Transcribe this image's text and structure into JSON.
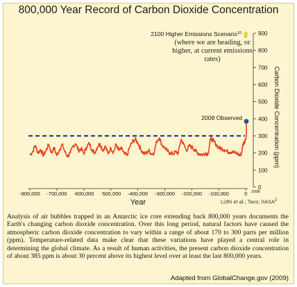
{
  "title": "800,000 Year Record of Carbon Dioxide Concentration",
  "colors": {
    "background": "#fdf5cf",
    "series": "#e8401f",
    "reference": "#2a3d8f",
    "observed_marker": "#2b4aa3",
    "projection_marker": "#f2d23c"
  },
  "annotations": {
    "projection_label": "2100 Higher Emissions Scenario",
    "projection_footnote": "10",
    "projection_note": "(where we are heading, or higher, at current emissions rates)",
    "observed_label": "2008 Observed",
    "credit": "Lüthi et al.; Tans; IIASA",
    "credit_footnote": "2",
    "x_end_label": "2008"
  },
  "caption": "Analysis of air bubbles trapped in an Antarctic ice core extending back 800,000 years documents the Earth's changing carbon dioxide concentration. Over this long period, natural factors have caused the atmospheric carbon dioxide concentration to vary within a range of about 170 to 300 parts per million (ppm). Temperature-related data make clear that these variations have played a central role in determining the global climate. As a result of human activities, the present carbon dioxide concentration of about 385 ppm is about 30 percent above its highest level over at least the last 800,000 years.",
  "adapted": "Adapted from GlobalChange.gov (2009)",
  "chart_data": {
    "type": "line",
    "title": "800,000 Year Record of Carbon Dioxide Concentration",
    "xlabel": "Year",
    "ylabel": "Carbon Dioxide Concentration (ppm)",
    "xlim": [
      -800000,
      2008
    ],
    "ylim": [
      0,
      900
    ],
    "y_axis_side": "right",
    "grid": false,
    "x_ticks": [
      -800000,
      -700000,
      -600000,
      -500000,
      -400000,
      -300000,
      -200000,
      -100000,
      0
    ],
    "x_tick_labels": [
      "-800,000",
      "-700,000",
      "-600,000",
      "-500,000",
      "-400,000",
      "-300,000",
      "-200,000",
      "-100,000",
      "0"
    ],
    "y_ticks": [
      0,
      100,
      200,
      300,
      400,
      500,
      600,
      700,
      800,
      900
    ],
    "y_tick_labels": [
      "0",
      "100",
      "200",
      "300",
      "400",
      "500",
      "600",
      "700",
      "800",
      "900"
    ],
    "reference_line": {
      "y": 300,
      "style": "dashed"
    },
    "series": [
      {
        "values": [
          [
            -800000,
            190
          ],
          [
            -790000,
            205
          ],
          [
            -780000,
            245
          ],
          [
            -770000,
            200
          ],
          [
            -760000,
            220
          ],
          [
            -750000,
            185
          ],
          [
            -740000,
            215
          ],
          [
            -730000,
            250
          ],
          [
            -720000,
            200
          ],
          [
            -710000,
            230
          ],
          [
            -700000,
            185
          ],
          [
            -690000,
            220
          ],
          [
            -680000,
            250
          ],
          [
            -670000,
            205
          ],
          [
            -660000,
            180
          ],
          [
            -650000,
            200
          ],
          [
            -640000,
            240
          ],
          [
            -630000,
            255
          ],
          [
            -620000,
            215
          ],
          [
            -610000,
            225
          ],
          [
            -600000,
            195
          ],
          [
            -590000,
            235
          ],
          [
            -580000,
            255
          ],
          [
            -570000,
            220
          ],
          [
            -560000,
            200
          ],
          [
            -550000,
            235
          ],
          [
            -540000,
            255
          ],
          [
            -530000,
            215
          ],
          [
            -520000,
            240
          ],
          [
            -510000,
            195
          ],
          [
            -500000,
            230
          ],
          [
            -490000,
            205
          ],
          [
            -480000,
            250
          ],
          [
            -470000,
            215
          ],
          [
            -460000,
            225
          ],
          [
            -450000,
            195
          ],
          [
            -440000,
            185
          ],
          [
            -430000,
            235
          ],
          [
            -420000,
            265
          ],
          [
            -410000,
            280
          ],
          [
            -400000,
            260
          ],
          [
            -390000,
            225
          ],
          [
            -380000,
            200
          ],
          [
            -370000,
            195
          ],
          [
            -360000,
            215
          ],
          [
            -350000,
            195
          ],
          [
            -340000,
            200
          ],
          [
            -330000,
            270
          ],
          [
            -320000,
            290
          ],
          [
            -310000,
            245
          ],
          [
            -300000,
            230
          ],
          [
            -290000,
            210
          ],
          [
            -280000,
            200
          ],
          [
            -270000,
            195
          ],
          [
            -260000,
            205
          ],
          [
            -250000,
            200
          ],
          [
            -240000,
            280
          ],
          [
            -230000,
            250
          ],
          [
            -220000,
            215
          ],
          [
            -210000,
            240
          ],
          [
            -200000,
            235
          ],
          [
            -190000,
            220
          ],
          [
            -180000,
            200
          ],
          [
            -170000,
            195
          ],
          [
            -160000,
            190
          ],
          [
            -150000,
            200
          ],
          [
            -140000,
            195
          ],
          [
            -130000,
            285
          ],
          [
            -120000,
            270
          ],
          [
            -110000,
            250
          ],
          [
            -100000,
            230
          ],
          [
            -90000,
            225
          ],
          [
            -80000,
            220
          ],
          [
            -70000,
            210
          ],
          [
            -60000,
            205
          ],
          [
            -50000,
            210
          ],
          [
            -40000,
            200
          ],
          [
            -30000,
            195
          ],
          [
            -20000,
            185
          ],
          [
            -15000,
            205
          ],
          [
            -10000,
            255
          ],
          [
            -5000,
            265
          ],
          [
            -1000,
            280
          ],
          [
            0,
            280
          ],
          [
            1900,
            300
          ],
          [
            1960,
            320
          ],
          [
            2008,
            385
          ]
        ]
      }
    ],
    "observed_point": {
      "x": 2008,
      "y": 385
    },
    "projection_point": {
      "x": 2100,
      "y": 900
    }
  }
}
